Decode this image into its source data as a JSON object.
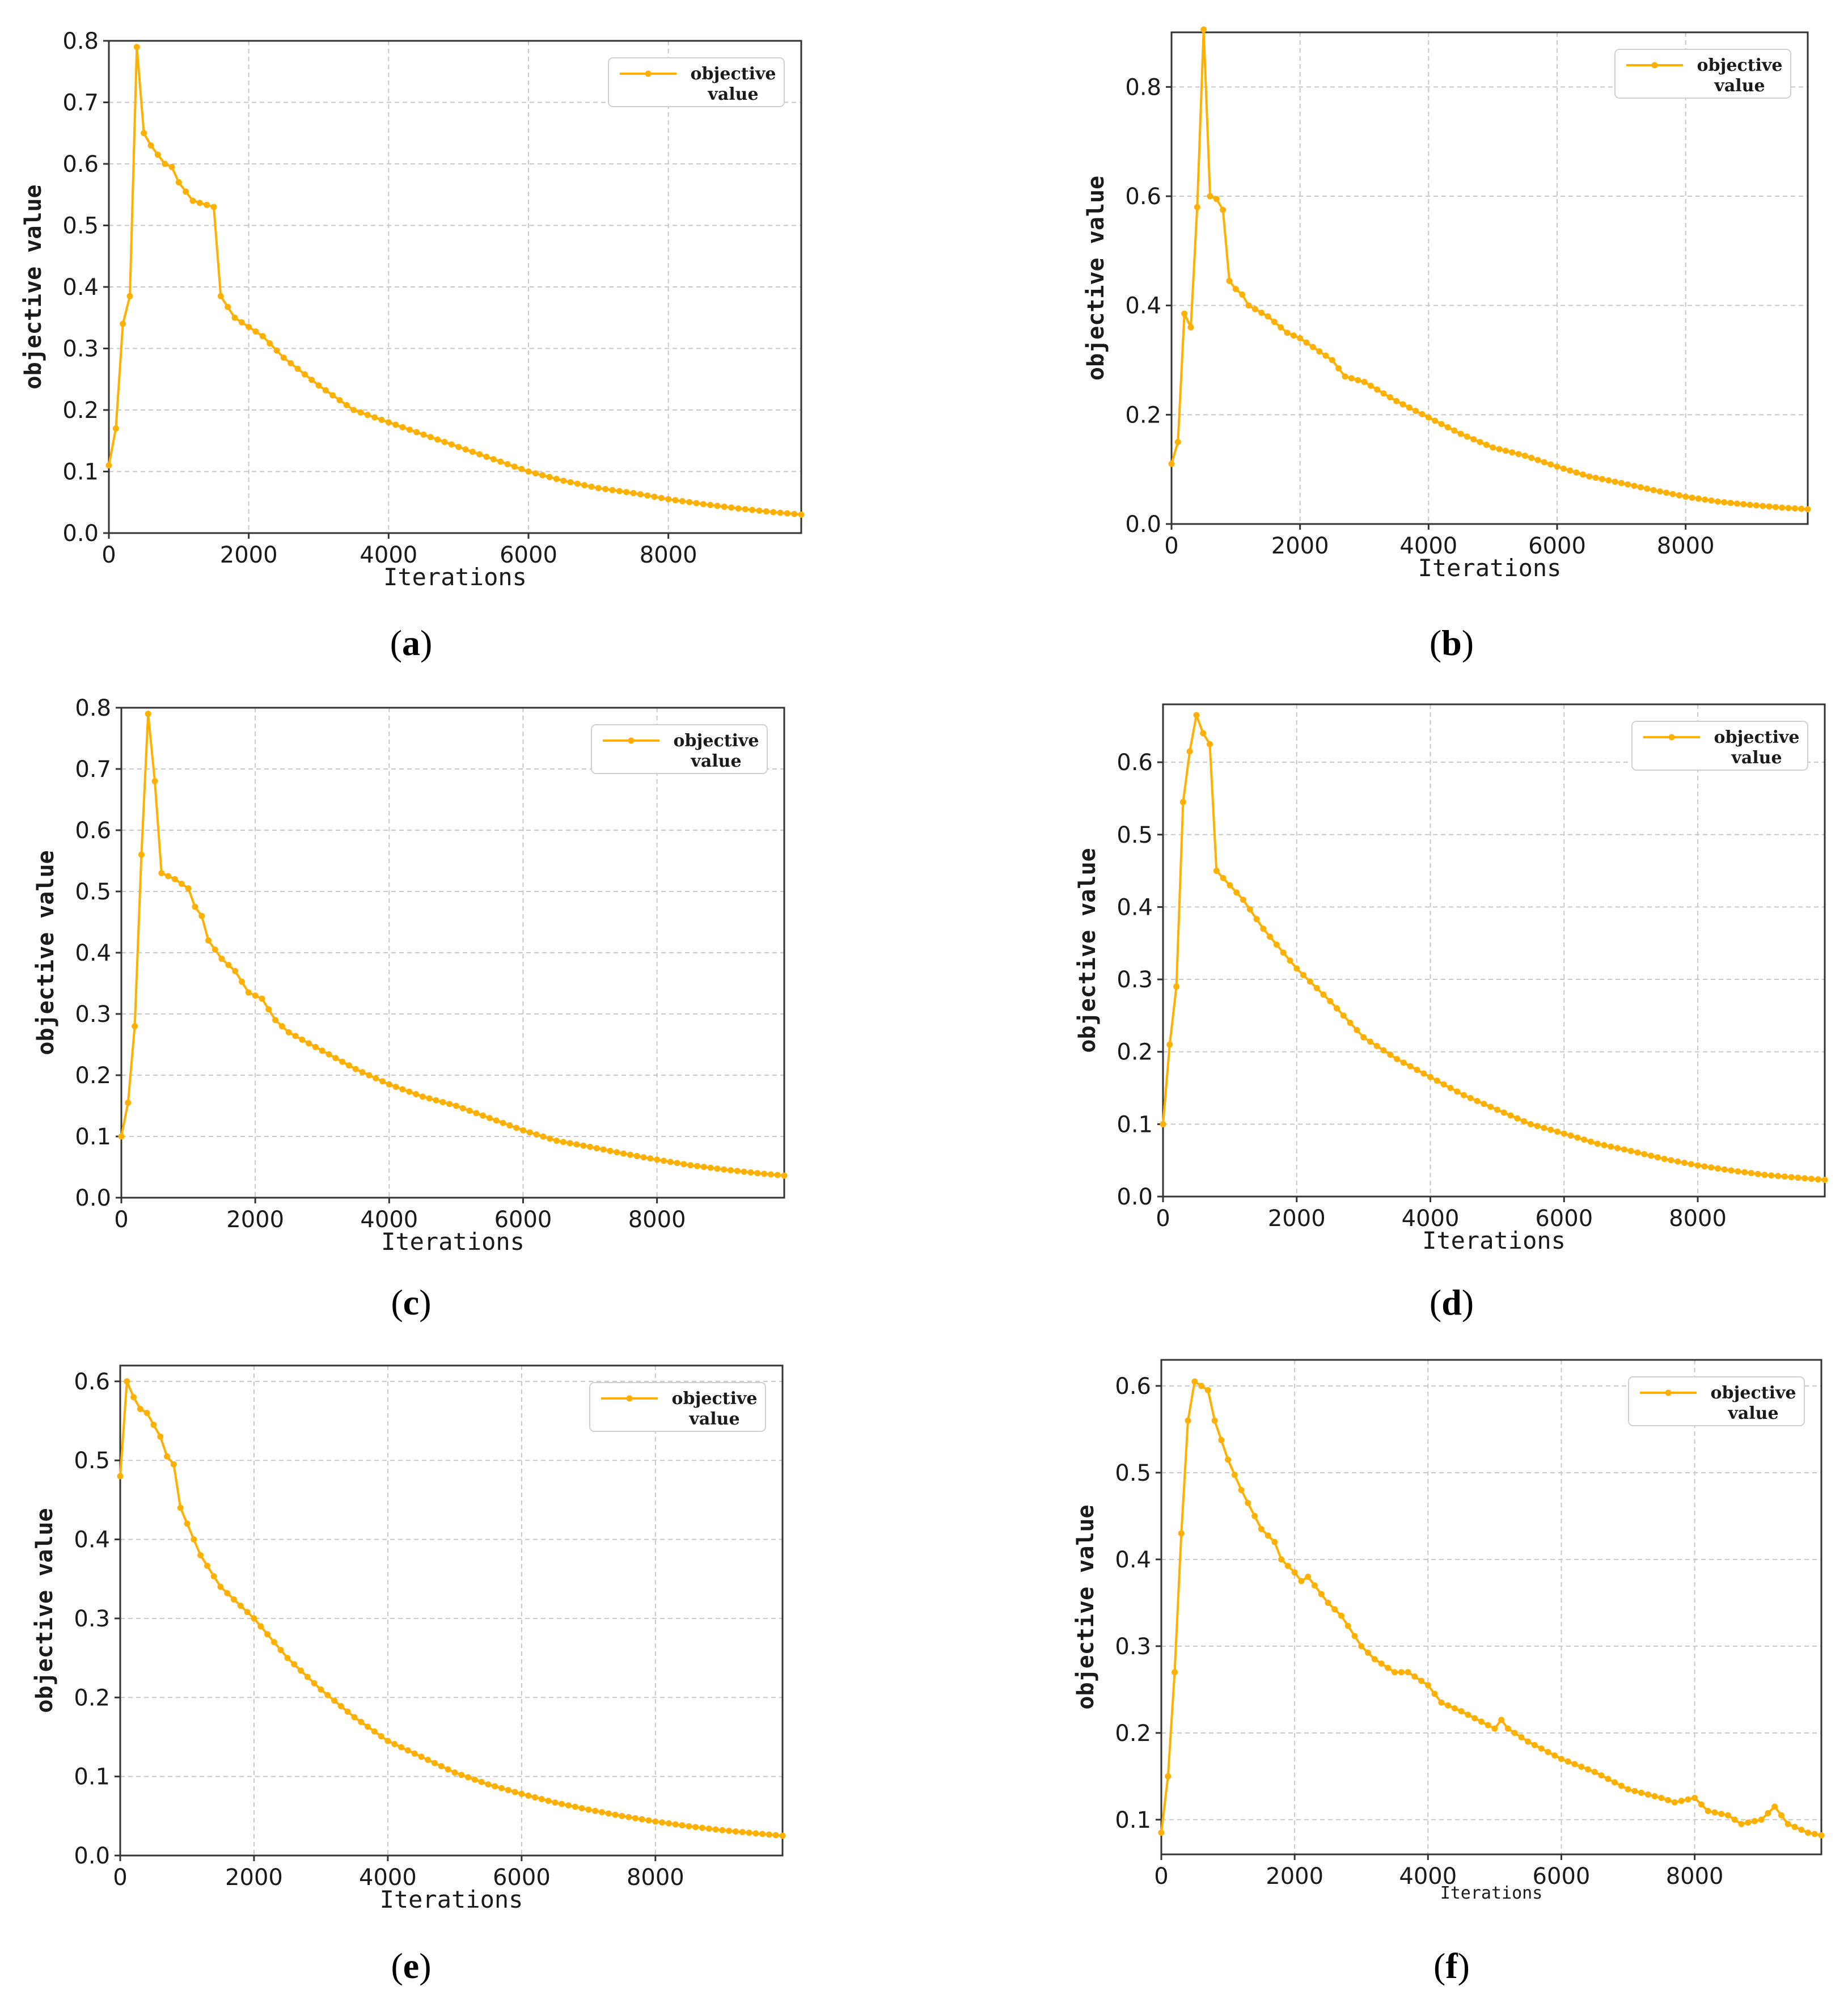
{
  "figure": {
    "panels": [
      "a",
      "b",
      "c",
      "d",
      "e",
      "f"
    ]
  },
  "colors": {
    "series": "#FFB000",
    "grid": "#c8c8c8",
    "axis": "#333333",
    "legend_border": "#d0d0d0"
  },
  "chart_data": [
    {
      "id": "a",
      "type": "line",
      "caption_letter": "a",
      "xlabel": "Iterations",
      "ylabel": "objective value",
      "legend": [
        "objective",
        "value"
      ],
      "xlim": [
        0,
        9900
      ],
      "ylim": [
        0,
        0.8
      ],
      "xticks": [
        0,
        2000,
        4000,
        6000,
        8000
      ],
      "xtick_labels": [
        "0",
        "2000",
        "4000",
        "6000",
        "8000"
      ],
      "yticks": [
        0,
        0.1,
        0.2,
        0.3,
        0.4,
        0.5,
        0.6,
        0.7,
        0.8
      ],
      "ytick_labels": [
        "0.0",
        "0.1",
        "0.2",
        "0.3",
        "0.4",
        "0.5",
        "0.6",
        "0.7",
        "0.8"
      ],
      "anchors": [
        [
          0,
          0.11
        ],
        [
          100,
          0.17
        ],
        [
          200,
          0.34
        ],
        [
          300,
          0.385
        ],
        [
          400,
          0.79
        ],
        [
          500,
          0.65
        ],
        [
          600,
          0.63
        ],
        [
          800,
          0.6
        ],
        [
          900,
          0.595
        ],
        [
          1000,
          0.57
        ],
        [
          1200,
          0.54
        ],
        [
          1500,
          0.53
        ],
        [
          1600,
          0.385
        ],
        [
          1800,
          0.35
        ],
        [
          2200,
          0.32
        ],
        [
          2500,
          0.285
        ],
        [
          3000,
          0.24
        ],
        [
          3500,
          0.2
        ],
        [
          4000,
          0.18
        ],
        [
          4500,
          0.16
        ],
        [
          5000,
          0.14
        ],
        [
          5500,
          0.12
        ],
        [
          6000,
          0.1
        ],
        [
          6500,
          0.085
        ],
        [
          7000,
          0.073
        ],
        [
          7500,
          0.065
        ],
        [
          8000,
          0.055
        ],
        [
          8500,
          0.047
        ],
        [
          9000,
          0.04
        ],
        [
          9500,
          0.034
        ],
        [
          9900,
          0.03
        ]
      ]
    },
    {
      "id": "b",
      "type": "line",
      "caption_letter": "b",
      "xlabel": "Iterations",
      "ylabel": "objective value",
      "legend": [
        "objective",
        "value"
      ],
      "xlim": [
        0,
        9900
      ],
      "ylim": [
        0,
        0.9
      ],
      "xticks": [
        0,
        2000,
        4000,
        6000,
        8000
      ],
      "xtick_labels": [
        "0",
        "2000",
        "4000",
        "6000",
        "8000"
      ],
      "yticks": [
        0,
        0.2,
        0.4,
        0.6,
        0.8
      ],
      "ytick_labels": [
        "0.0",
        "0.2",
        "0.4",
        "0.6",
        "0.8"
      ],
      "anchors": [
        [
          0,
          0.11
        ],
        [
          100,
          0.15
        ],
        [
          200,
          0.385
        ],
        [
          300,
          0.36
        ],
        [
          400,
          0.58
        ],
        [
          500,
          0.905
        ],
        [
          600,
          0.6
        ],
        [
          700,
          0.595
        ],
        [
          800,
          0.575
        ],
        [
          900,
          0.445
        ],
        [
          1000,
          0.43
        ],
        [
          1100,
          0.42
        ],
        [
          1200,
          0.4
        ],
        [
          1500,
          0.38
        ],
        [
          1800,
          0.35
        ],
        [
          2000,
          0.34
        ],
        [
          2500,
          0.3
        ],
        [
          2700,
          0.27
        ],
        [
          3000,
          0.26
        ],
        [
          3500,
          0.225
        ],
        [
          4000,
          0.195
        ],
        [
          4500,
          0.165
        ],
        [
          5000,
          0.14
        ],
        [
          5500,
          0.125
        ],
        [
          6000,
          0.105
        ],
        [
          6500,
          0.087
        ],
        [
          7000,
          0.075
        ],
        [
          7500,
          0.062
        ],
        [
          8000,
          0.05
        ],
        [
          8500,
          0.041
        ],
        [
          9000,
          0.035
        ],
        [
          9500,
          0.03
        ],
        [
          9900,
          0.027
        ]
      ]
    },
    {
      "id": "c",
      "type": "line",
      "caption_letter": "c",
      "xlabel": "Iterations",
      "ylabel": "objective value",
      "legend": [
        "objective",
        "value"
      ],
      "xlim": [
        0,
        9900
      ],
      "ylim": [
        0,
        0.8
      ],
      "xticks": [
        0,
        2000,
        4000,
        6000,
        8000
      ],
      "xtick_labels": [
        "0",
        "2000",
        "4000",
        "6000",
        "8000"
      ],
      "yticks": [
        0,
        0.1,
        0.2,
        0.3,
        0.4,
        0.5,
        0.6,
        0.7,
        0.8
      ],
      "ytick_labels": [
        "0.0",
        "0.1",
        "0.2",
        "0.3",
        "0.4",
        "0.5",
        "0.6",
        "0.7",
        "0.8"
      ],
      "anchors": [
        [
          0,
          0.1
        ],
        [
          100,
          0.155
        ],
        [
          200,
          0.28
        ],
        [
          300,
          0.56
        ],
        [
          400,
          0.79
        ],
        [
          500,
          0.68
        ],
        [
          600,
          0.53
        ],
        [
          800,
          0.52
        ],
        [
          1000,
          0.505
        ],
        [
          1100,
          0.475
        ],
        [
          1200,
          0.46
        ],
        [
          1300,
          0.42
        ],
        [
          1500,
          0.39
        ],
        [
          1700,
          0.37
        ],
        [
          1900,
          0.335
        ],
        [
          2100,
          0.325
        ],
        [
          2300,
          0.29
        ],
        [
          2500,
          0.27
        ],
        [
          3000,
          0.24
        ],
        [
          3500,
          0.21
        ],
        [
          4000,
          0.185
        ],
        [
          4500,
          0.165
        ],
        [
          5000,
          0.15
        ],
        [
          5500,
          0.13
        ],
        [
          6000,
          0.11
        ],
        [
          6500,
          0.093
        ],
        [
          7000,
          0.083
        ],
        [
          7500,
          0.072
        ],
        [
          8000,
          0.062
        ],
        [
          8500,
          0.053
        ],
        [
          9000,
          0.046
        ],
        [
          9500,
          0.04
        ],
        [
          9900,
          0.036
        ]
      ]
    },
    {
      "id": "d",
      "type": "line",
      "caption_letter": "d",
      "xlabel": "Iterations",
      "ylabel": "objective value",
      "legend": [
        "objective",
        "value"
      ],
      "xlim": [
        0,
        9900
      ],
      "ylim": [
        0,
        0.68
      ],
      "xticks": [
        0,
        2000,
        4000,
        6000,
        8000
      ],
      "xtick_labels": [
        "0",
        "2000",
        "4000",
        "6000",
        "8000"
      ],
      "yticks": [
        0,
        0.1,
        0.2,
        0.3,
        0.4,
        0.5,
        0.6
      ],
      "ytick_labels": [
        "0.0",
        "0.1",
        "0.2",
        "0.3",
        "0.4",
        "0.5",
        "0.6"
      ],
      "anchors": [
        [
          0,
          0.1
        ],
        [
          100,
          0.21
        ],
        [
          200,
          0.29
        ],
        [
          300,
          0.545
        ],
        [
          400,
          0.615
        ],
        [
          500,
          0.665
        ],
        [
          600,
          0.64
        ],
        [
          700,
          0.625
        ],
        [
          800,
          0.45
        ],
        [
          1000,
          0.43
        ],
        [
          1200,
          0.41
        ],
        [
          1500,
          0.37
        ],
        [
          2000,
          0.315
        ],
        [
          2500,
          0.27
        ],
        [
          3000,
          0.22
        ],
        [
          3500,
          0.19
        ],
        [
          4000,
          0.165
        ],
        [
          4500,
          0.14
        ],
        [
          5000,
          0.12
        ],
        [
          5500,
          0.1
        ],
        [
          6000,
          0.087
        ],
        [
          6500,
          0.073
        ],
        [
          7000,
          0.063
        ],
        [
          7500,
          0.052
        ],
        [
          8000,
          0.043
        ],
        [
          8500,
          0.036
        ],
        [
          9000,
          0.03
        ],
        [
          9500,
          0.026
        ],
        [
          9900,
          0.023
        ]
      ]
    },
    {
      "id": "e",
      "type": "line",
      "caption_letter": "e",
      "xlabel": "Iterations",
      "ylabel": "objective value",
      "legend": [
        "objective",
        "value"
      ],
      "xlim": [
        0,
        9900
      ],
      "ylim": [
        0,
        0.62
      ],
      "xticks": [
        0,
        2000,
        4000,
        6000,
        8000
      ],
      "xtick_labels": [
        "0",
        "2000",
        "4000",
        "6000",
        "8000"
      ],
      "yticks": [
        0,
        0.1,
        0.2,
        0.3,
        0.4,
        0.5,
        0.6
      ],
      "ytick_labels": [
        "0.0",
        "0.1",
        "0.2",
        "0.3",
        "0.4",
        "0.5",
        "0.6"
      ],
      "anchors": [
        [
          0,
          0.48
        ],
        [
          100,
          0.6
        ],
        [
          200,
          0.58
        ],
        [
          300,
          0.565
        ],
        [
          400,
          0.56
        ],
        [
          500,
          0.545
        ],
        [
          600,
          0.53
        ],
        [
          700,
          0.505
        ],
        [
          800,
          0.495
        ],
        [
          900,
          0.44
        ],
        [
          1000,
          0.42
        ],
        [
          1200,
          0.38
        ],
        [
          1500,
          0.34
        ],
        [
          2000,
          0.3
        ],
        [
          2500,
          0.25
        ],
        [
          3000,
          0.21
        ],
        [
          3500,
          0.175
        ],
        [
          4000,
          0.145
        ],
        [
          4500,
          0.125
        ],
        [
          5000,
          0.105
        ],
        [
          5500,
          0.09
        ],
        [
          6000,
          0.078
        ],
        [
          6500,
          0.067
        ],
        [
          7000,
          0.058
        ],
        [
          7500,
          0.05
        ],
        [
          8000,
          0.043
        ],
        [
          8500,
          0.037
        ],
        [
          9000,
          0.032
        ],
        [
          9500,
          0.028
        ],
        [
          9900,
          0.025
        ]
      ]
    },
    {
      "id": "f",
      "type": "line",
      "caption_letter": "f",
      "xlabel": "Iterations",
      "ylabel": "objective value",
      "legend": [
        "objective",
        "value"
      ],
      "xlim": [
        0,
        9900
      ],
      "ylim": [
        0.06,
        0.63
      ],
      "xticks": [
        0,
        2000,
        4000,
        6000,
        8000
      ],
      "xtick_labels": [
        "0",
        "2000",
        "4000",
        "6000",
        "8000"
      ],
      "yticks": [
        0.1,
        0.2,
        0.3,
        0.4,
        0.5,
        0.6
      ],
      "ytick_labels": [
        "0.1",
        "0.2",
        "0.3",
        "0.4",
        "0.5",
        "0.6"
      ],
      "anchors": [
        [
          0,
          0.085
        ],
        [
          100,
          0.15
        ],
        [
          200,
          0.27
        ],
        [
          300,
          0.43
        ],
        [
          400,
          0.56
        ],
        [
          500,
          0.605
        ],
        [
          600,
          0.6
        ],
        [
          700,
          0.595
        ],
        [
          800,
          0.56
        ],
        [
          1000,
          0.515
        ],
        [
          1200,
          0.48
        ],
        [
          1500,
          0.435
        ],
        [
          1700,
          0.42
        ],
        [
          1800,
          0.4
        ],
        [
          2000,
          0.385
        ],
        [
          2100,
          0.375
        ],
        [
          2200,
          0.38
        ],
        [
          2300,
          0.37
        ],
        [
          2500,
          0.35
        ],
        [
          2700,
          0.335
        ],
        [
          3000,
          0.3
        ],
        [
          3200,
          0.285
        ],
        [
          3500,
          0.27
        ],
        [
          3700,
          0.27
        ],
        [
          4000,
          0.255
        ],
        [
          4200,
          0.235
        ],
        [
          4500,
          0.225
        ],
        [
          5000,
          0.205
        ],
        [
          5100,
          0.215
        ],
        [
          5200,
          0.205
        ],
        [
          5500,
          0.19
        ],
        [
          6000,
          0.17
        ],
        [
          6500,
          0.155
        ],
        [
          7000,
          0.135
        ],
        [
          7500,
          0.125
        ],
        [
          7700,
          0.12
        ],
        [
          8000,
          0.125
        ],
        [
          8200,
          0.11
        ],
        [
          8500,
          0.105
        ],
        [
          8700,
          0.095
        ],
        [
          9000,
          0.1
        ],
        [
          9200,
          0.115
        ],
        [
          9400,
          0.095
        ],
        [
          9700,
          0.085
        ],
        [
          9900,
          0.082
        ]
      ]
    }
  ]
}
